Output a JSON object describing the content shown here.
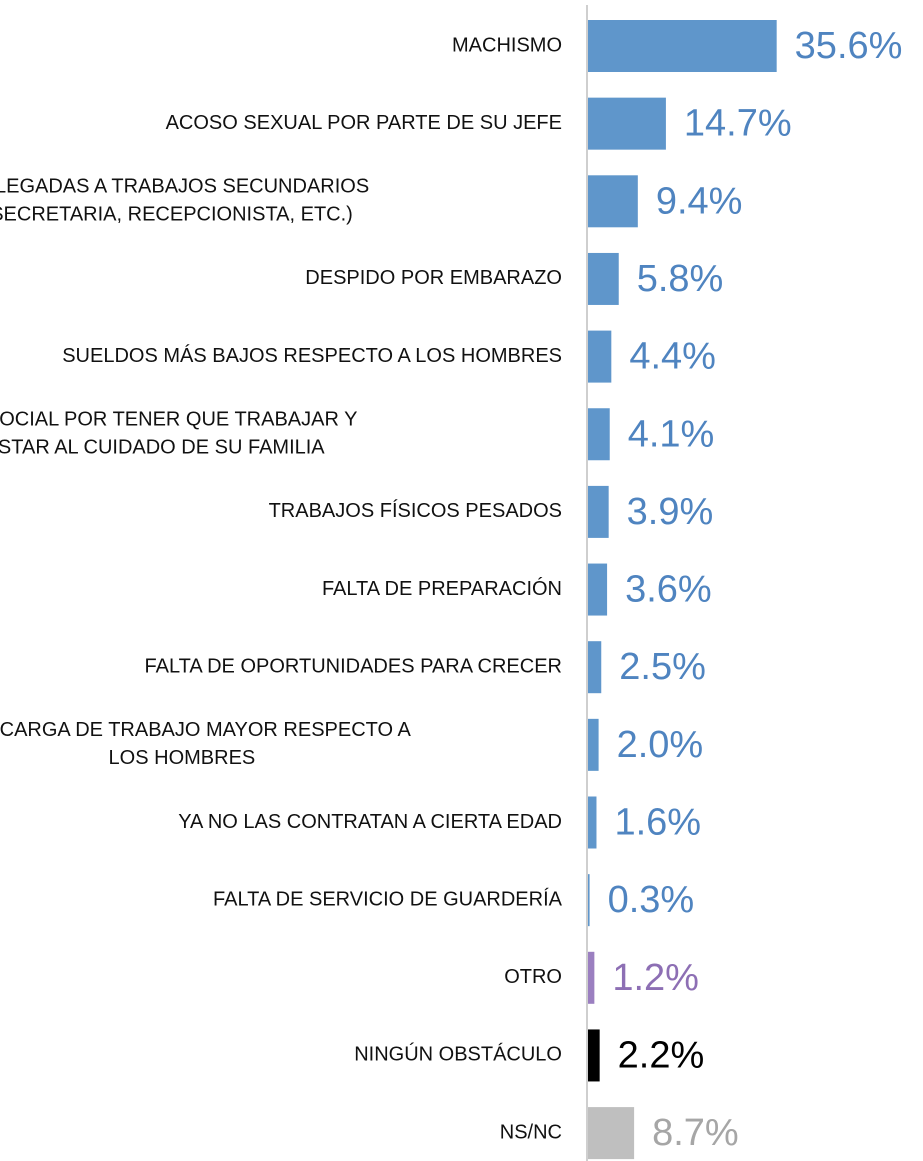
{
  "chart_data": {
    "type": "bar",
    "orientation": "horizontal",
    "categories": [
      "MACHISMO",
      "ACOSO SEXUAL POR PARTE DE SU JEFE",
      "RELEGADAS A TRABAJOS SECUNDARIOS\n(SECRETARIA, RECEPCIONISTA, ETC.)",
      "DESPIDO POR EMBARAZO",
      "SUELDOS MÁS BAJOS RESPECTO A LOS HOMBRES",
      "CULPA SOCIAL POR TENER QUE TRABAJAR Y\nNO ESTAR AL CUIDADO DE SU FAMILIA",
      "TRABAJOS FÍSICOS PESADOS",
      "FALTA DE PREPARACIÓN",
      "FALTA DE OPORTUNIDADES PARA CRECER",
      "UNA CARGA DE TRABAJO MAYOR RESPECTO A\nLOS HOMBRES",
      "YA NO LAS CONTRATAN A CIERTA EDAD",
      "FALTA  DE SERVICIO DE GUARDERÍA",
      "OTRO",
      "NINGÚN OBSTÁCULO",
      "NS/NC"
    ],
    "values": [
      35.6,
      14.7,
      9.4,
      5.8,
      4.4,
      4.1,
      3.9,
      3.6,
      2.5,
      2.0,
      1.6,
      0.3,
      1.2,
      2.2,
      8.7
    ],
    "value_labels": [
      "35.6%",
      "14.7%",
      "9.4%",
      "5.8%",
      "4.4%",
      "4.1%",
      "3.9%",
      "3.6%",
      "2.5%",
      "2.0%",
      "1.6%",
      "0.3%",
      "1.2%",
      "2.2%",
      "8.7%"
    ],
    "colors": [
      "#5f96cb",
      "#5f96cb",
      "#5f96cb",
      "#5f96cb",
      "#5f96cb",
      "#5f96cb",
      "#5f96cb",
      "#5f96cb",
      "#5f96cb",
      "#5f96cb",
      "#5f96cb",
      "#5f96cb",
      "#9b7fc0",
      "#000000",
      "#bfbfbf"
    ],
    "label_colors": [
      "#4f84c0",
      "#4f84c0",
      "#4f84c0",
      "#4f84c0",
      "#4f84c0",
      "#4f84c0",
      "#4f84c0",
      "#4f84c0",
      "#4f84c0",
      "#4f84c0",
      "#4f84c0",
      "#4f84c0",
      "#8d6fb4",
      "#000000",
      "#a6a6a6"
    ]
  }
}
